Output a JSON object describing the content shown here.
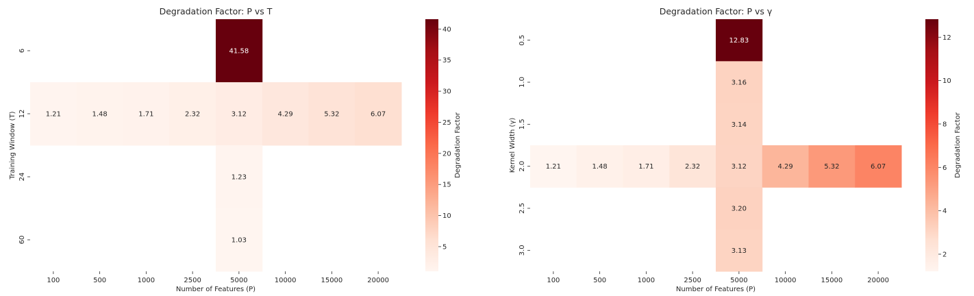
{
  "chart_data": [
    {
      "type": "heatmap",
      "title": "Degradation Factor: P vs T",
      "xlabel": "Number of Features (P)",
      "ylabel": "Training Window (T)",
      "x_categories": [
        "100",
        "500",
        "1000",
        "2500",
        "5000",
        "10000",
        "15000",
        "20000"
      ],
      "y_categories": [
        "6",
        "12",
        "24",
        "60"
      ],
      "cells": [
        {
          "x": "5000",
          "y": "6",
          "value": 41.58,
          "label": "41.58"
        },
        {
          "x": "100",
          "y": "12",
          "value": 1.21,
          "label": "1.21"
        },
        {
          "x": "500",
          "y": "12",
          "value": 1.48,
          "label": "1.48"
        },
        {
          "x": "1000",
          "y": "12",
          "value": 1.71,
          "label": "1.71"
        },
        {
          "x": "2500",
          "y": "12",
          "value": 2.32,
          "label": "2.32"
        },
        {
          "x": "5000",
          "y": "12",
          "value": 3.12,
          "label": "3.12"
        },
        {
          "x": "10000",
          "y": "12",
          "value": 4.29,
          "label": "4.29"
        },
        {
          "x": "15000",
          "y": "12",
          "value": 5.32,
          "label": "5.32"
        },
        {
          "x": "20000",
          "y": "12",
          "value": 6.07,
          "label": "6.07"
        },
        {
          "x": "5000",
          "y": "24",
          "value": 1.23,
          "label": "1.23"
        },
        {
          "x": "5000",
          "y": "60",
          "value": 1.03,
          "label": "1.03"
        }
      ],
      "colorbar": {
        "label": "Degradation Factor",
        "range": [
          1.03,
          41.58
        ],
        "ticks": [
          5,
          10,
          15,
          20,
          25,
          30,
          35,
          40
        ],
        "colormap": "Reds"
      }
    },
    {
      "type": "heatmap",
      "title": "Degradation Factor: P vs γ",
      "xlabel": "Number of Features (P)",
      "ylabel": "Kernel Width (γ)",
      "x_categories": [
        "100",
        "500",
        "1000",
        "2500",
        "5000",
        "10000",
        "15000",
        "20000"
      ],
      "y_categories": [
        "0.5",
        "1.0",
        "1.5",
        "2.0",
        "2.5",
        "3.0"
      ],
      "cells": [
        {
          "x": "5000",
          "y": "0.5",
          "value": 12.83,
          "label": "12.83"
        },
        {
          "x": "5000",
          "y": "1.0",
          "value": 3.16,
          "label": "3.16"
        },
        {
          "x": "5000",
          "y": "1.5",
          "value": 3.14,
          "label": "3.14"
        },
        {
          "x": "100",
          "y": "2.0",
          "value": 1.21,
          "label": "1.21"
        },
        {
          "x": "500",
          "y": "2.0",
          "value": 1.48,
          "label": "1.48"
        },
        {
          "x": "1000",
          "y": "2.0",
          "value": 1.71,
          "label": "1.71"
        },
        {
          "x": "2500",
          "y": "2.0",
          "value": 2.32,
          "label": "2.32"
        },
        {
          "x": "5000",
          "y": "2.0",
          "value": 3.12,
          "label": "3.12"
        },
        {
          "x": "10000",
          "y": "2.0",
          "value": 4.29,
          "label": "4.29"
        },
        {
          "x": "15000",
          "y": "2.0",
          "value": 5.32,
          "label": "5.32"
        },
        {
          "x": "20000",
          "y": "2.0",
          "value": 6.07,
          "label": "6.07"
        },
        {
          "x": "5000",
          "y": "2.5",
          "value": 3.2,
          "label": "3.20"
        },
        {
          "x": "5000",
          "y": "3.0",
          "value": 3.13,
          "label": "3.13"
        }
      ],
      "colorbar": {
        "label": "Degradation Factor",
        "range": [
          1.21,
          12.83
        ],
        "ticks": [
          2,
          4,
          6,
          8,
          10,
          12
        ],
        "colormap": "Reds"
      }
    }
  ]
}
